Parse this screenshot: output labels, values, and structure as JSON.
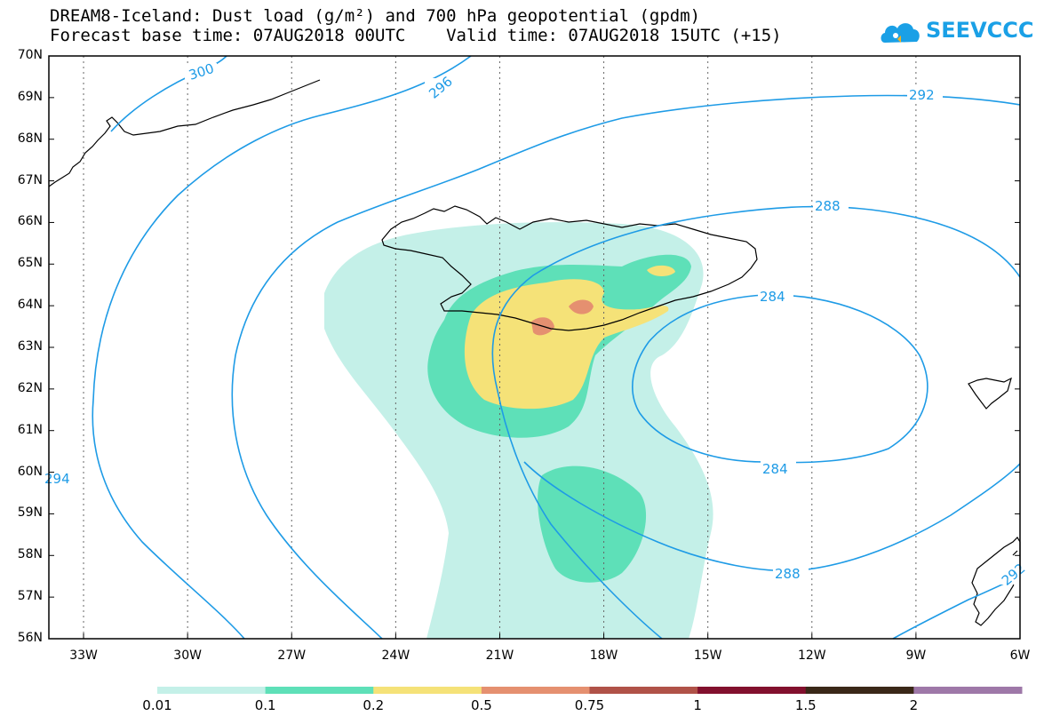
{
  "title": {
    "line1": "DREAM8-Iceland: Dust load (g/m²) and 700 hPa geopotential (gpdm)",
    "line2": "Forecast base time: 07AUG2018 00UTC    Valid time: 07AUG2018 15UTC (+15)"
  },
  "logo": {
    "text": "SEEVCCC"
  },
  "map": {
    "lon_range": [
      -34,
      -6
    ],
    "lat_range": [
      56,
      70
    ],
    "lat_labels": [
      "70N",
      "69N",
      "68N",
      "67N",
      "66N",
      "65N",
      "64N",
      "63N",
      "62N",
      "61N",
      "60N",
      "59N",
      "58N",
      "57N",
      "56N"
    ],
    "lon_labels": [
      "33W",
      "30W",
      "27W",
      "24W",
      "21W",
      "18W",
      "15W",
      "12W",
      "9W",
      "6W"
    ],
    "contour_labels": [
      "300",
      "296",
      "292",
      "288",
      "284",
      "284",
      "288",
      "292",
      "294"
    ],
    "contour_color": "#1e9be6"
  },
  "colorbar": {
    "colors": [
      "#c4f0e8",
      "#5ee0b8",
      "#f5e278",
      "#e59070",
      "#b05248",
      "#82102e",
      "#3a2818",
      "#9e78a8"
    ],
    "labels": [
      "0.01",
      "0.1",
      "0.2",
      "0.5",
      "0.75",
      "1",
      "1.5",
      "2"
    ]
  }
}
